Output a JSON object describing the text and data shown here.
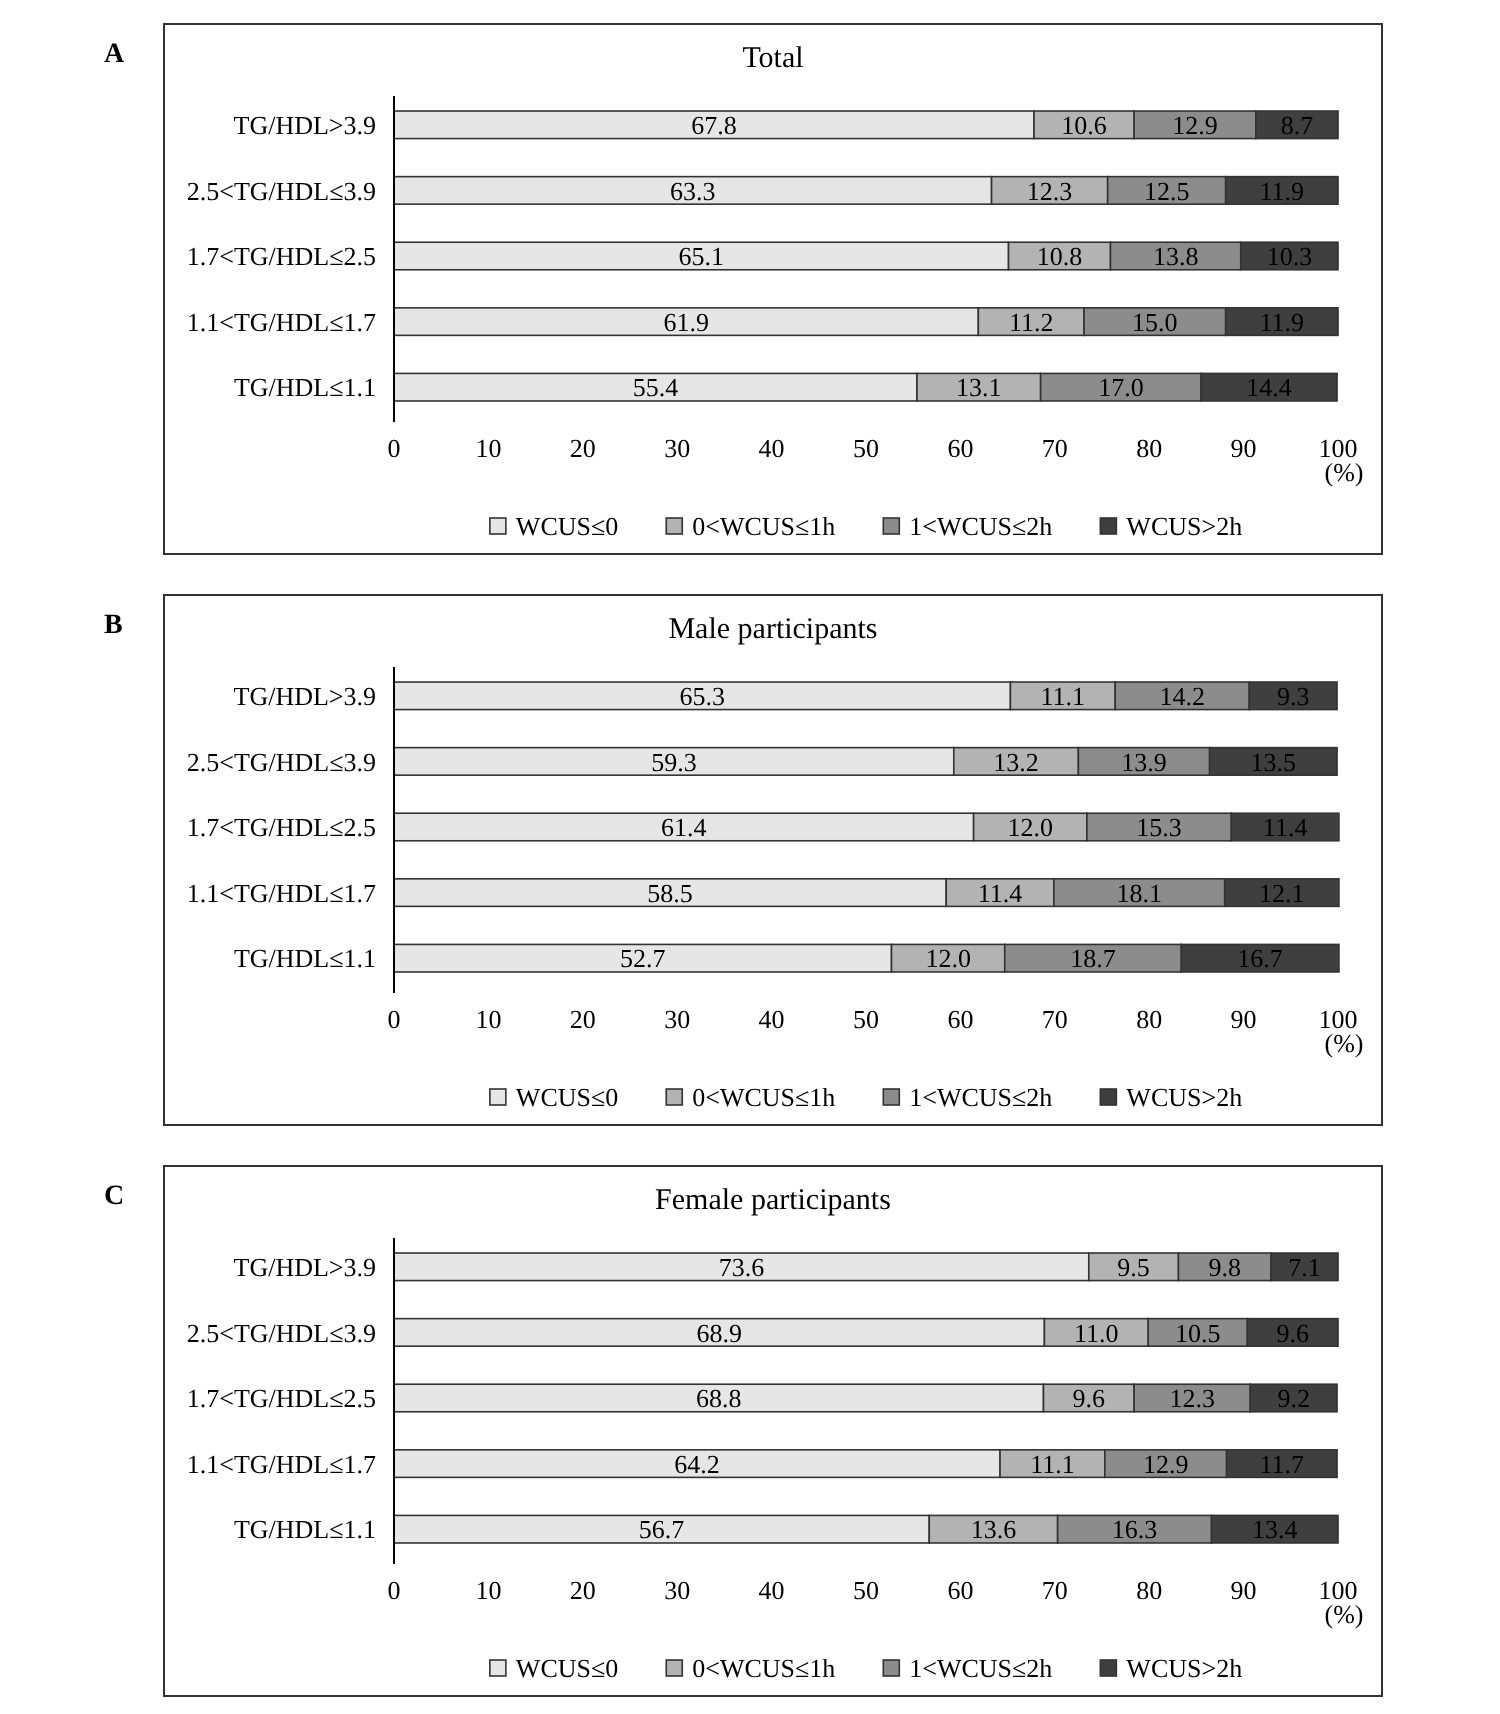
{
  "chart_data": [
    {
      "type": "bar",
      "orientation": "horizontal",
      "stacked": true,
      "title": "Total",
      "xlabel": "(%)",
      "annotations": [
        "A"
      ],
      "categories": [
        "TG/HDL>3.9",
        "2.5<TG/HDL≤3.9",
        "1.7<TG/HDL≤2.5",
        "1.1<TG/HDL≤1.7",
        "TG/HDL≤1.1"
      ],
      "series": [
        {
          "name": "WCUS≤0",
          "color": "#e6e6e6",
          "values": [
            67.8,
            63.3,
            65.1,
            61.9,
            55.4
          ],
          "value_labels": [
            "67.8",
            "63.3",
            "65.1",
            "61.9",
            "55.4"
          ]
        },
        {
          "name": "0<WCUS≤1h",
          "color": "#b3b3b3",
          "values": [
            10.6,
            12.3,
            10.8,
            11.2,
            13.1
          ],
          "value_labels": [
            "10.6",
            "12.3",
            "10.8",
            "11.2",
            "13.1"
          ]
        },
        {
          "name": "1<WCUS≤2h",
          "color": "#8c8c8c",
          "values": [
            12.9,
            12.5,
            13.8,
            15.0,
            17.0
          ],
          "value_labels": [
            "12.9",
            "12.5",
            "13.8",
            "15.0",
            "17.0"
          ]
        },
        {
          "name": "WCUS>2h",
          "color": "#3f3f3f",
          "values": [
            8.7,
            11.9,
            10.3,
            11.9,
            14.4
          ],
          "value_labels": [
            "8.7",
            "11.9",
            "10.3",
            "11.9",
            "14.4"
          ]
        }
      ],
      "xlim": [
        0,
        100
      ],
      "xticks": [
        0,
        10,
        20,
        30,
        40,
        50,
        60,
        70,
        80,
        90,
        100
      ],
      "legend": "bottom"
    },
    {
      "type": "bar",
      "orientation": "horizontal",
      "stacked": true,
      "title": "Male participants",
      "xlabel": "(%)",
      "annotations": [
        "B"
      ],
      "categories": [
        "TG/HDL>3.9",
        "2.5<TG/HDL≤3.9",
        "1.7<TG/HDL≤2.5",
        "1.1<TG/HDL≤1.7",
        "TG/HDL≤1.1"
      ],
      "series": [
        {
          "name": "WCUS≤0",
          "color": "#e6e6e6",
          "values": [
            65.3,
            59.3,
            61.4,
            58.5,
            52.7
          ],
          "value_labels": [
            "65.3",
            "59.3",
            "61.4",
            "58.5",
            "52.7"
          ]
        },
        {
          "name": "0<WCUS≤1h",
          "color": "#b3b3b3",
          "values": [
            11.1,
            13.2,
            12.0,
            11.4,
            12.0
          ],
          "value_labels": [
            "11.1",
            "13.2",
            "12.0",
            "11.4",
            "12.0"
          ]
        },
        {
          "name": "1<WCUS≤2h",
          "color": "#8c8c8c",
          "values": [
            14.2,
            13.9,
            15.3,
            18.1,
            18.7
          ],
          "value_labels": [
            "14.2",
            "13.9",
            "15.3",
            "18.1",
            "18.7"
          ]
        },
        {
          "name": "WCUS>2h",
          "color": "#3f3f3f",
          "values": [
            9.3,
            13.5,
            11.4,
            12.1,
            16.7
          ],
          "value_labels": [
            "9.3",
            "13.5",
            "11.4",
            "12.1",
            "16.7"
          ]
        }
      ],
      "xlim": [
        0,
        100
      ],
      "xticks": [
        0,
        10,
        20,
        30,
        40,
        50,
        60,
        70,
        80,
        90,
        100
      ],
      "legend": "bottom"
    },
    {
      "type": "bar",
      "orientation": "horizontal",
      "stacked": true,
      "title": "Female participants",
      "xlabel": "(%)",
      "annotations": [
        "C"
      ],
      "categories": [
        "TG/HDL>3.9",
        "2.5<TG/HDL≤3.9",
        "1.7<TG/HDL≤2.5",
        "1.1<TG/HDL≤1.7",
        "TG/HDL≤1.1"
      ],
      "series": [
        {
          "name": "WCUS≤0",
          "color": "#e6e6e6",
          "values": [
            73.6,
            68.9,
            68.8,
            64.2,
            56.7
          ],
          "value_labels": [
            "73.6",
            "68.9",
            "68.8",
            "64.2",
            "56.7"
          ]
        },
        {
          "name": "0<WCUS≤1h",
          "color": "#b3b3b3",
          "values": [
            9.5,
            11.0,
            9.6,
            11.1,
            13.6
          ],
          "value_labels": [
            "9.5",
            "11.0",
            "9.6",
            "11.1",
            "13.6"
          ]
        },
        {
          "name": "1<WCUS≤2h",
          "color": "#8c8c8c",
          "values": [
            9.8,
            10.5,
            12.3,
            12.9,
            16.3
          ],
          "value_labels": [
            "9.8",
            "10.5",
            "12.3",
            "12.9",
            "16.3"
          ]
        },
        {
          "name": "WCUS>2h",
          "color": "#3f3f3f",
          "values": [
            7.1,
            9.6,
            9.2,
            11.7,
            13.4
          ],
          "value_labels": [
            "7.1",
            "9.6",
            "9.2",
            "11.7",
            "13.4"
          ]
        }
      ],
      "xlim": [
        0,
        100
      ],
      "xticks": [
        0,
        10,
        20,
        30,
        40,
        50,
        60,
        70,
        80,
        90,
        100
      ],
      "legend": "bottom"
    }
  ]
}
